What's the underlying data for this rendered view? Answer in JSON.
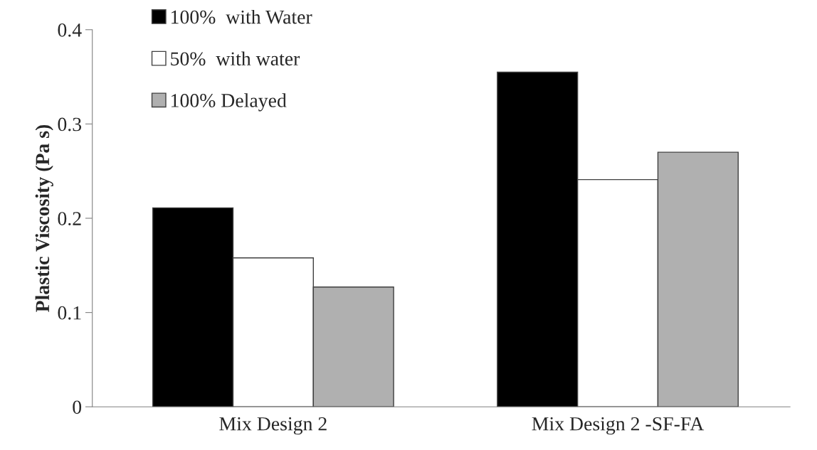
{
  "chart_data": {
    "type": "bar",
    "ylabel": "Plastic Viscosity (Pa s)",
    "categories": [
      "Mix Design 2",
      "Mix Design 2 -SF-FA"
    ],
    "series": [
      {
        "name": "100%  with Water",
        "color": "#000000",
        "values": [
          0.211,
          0.355
        ]
      },
      {
        "name": "50%  with water",
        "color": "#ffffff",
        "values": [
          0.158,
          0.241
        ]
      },
      {
        "name": "100% Delayed",
        "color": "#b0b0b0",
        "values": [
          0.127,
          0.27
        ]
      }
    ],
    "ylim": [
      0,
      0.4
    ],
    "yticks": [
      0,
      0.1,
      0.2,
      0.3,
      0.4
    ],
    "legend": "top left"
  }
}
